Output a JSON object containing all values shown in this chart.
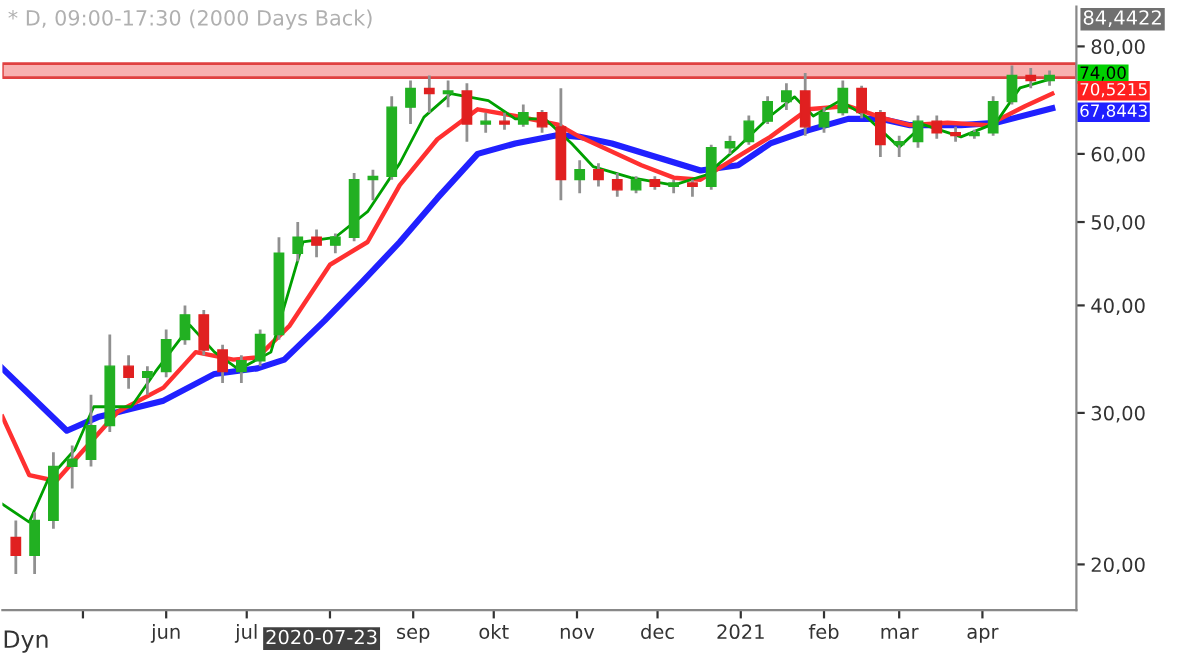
{
  "chart_data": {
    "type": "candlestick",
    "title": "* D, 09:00-17:30 (2000 Days Back)",
    "x": [
      "2020-04-06",
      "2020-04-13",
      "2020-04-20",
      "2020-04-27",
      "2020-05-04",
      "2020-05-11",
      "2020-05-18",
      "2020-05-25",
      "2020-06-01",
      "2020-06-08",
      "2020-06-15",
      "2020-06-22",
      "2020-06-29",
      "2020-07-06",
      "2020-07-13",
      "2020-07-20",
      "2020-07-27",
      "2020-08-03",
      "2020-08-10",
      "2020-08-17",
      "2020-08-24",
      "2020-08-31",
      "2020-09-07",
      "2020-09-14",
      "2020-09-21",
      "2020-09-28",
      "2020-10-05",
      "2020-10-12",
      "2020-10-19",
      "2020-10-26",
      "2020-11-02",
      "2020-11-09",
      "2020-11-16",
      "2020-11-23",
      "2020-11-30",
      "2020-12-07",
      "2020-12-14",
      "2020-12-21",
      "2020-12-28",
      "2021-01-04",
      "2021-01-11",
      "2021-01-18",
      "2021-01-25",
      "2021-02-01",
      "2021-02-08",
      "2021-02-15",
      "2021-02-22",
      "2021-03-01",
      "2021-03-08",
      "2021-03-15",
      "2021-03-22",
      "2021-03-29",
      "2021-04-05",
      "2021-04-12",
      "2021-04-19",
      "2021-04-26"
    ],
    "ohlc": [
      [
        21.5,
        22.5,
        19.5,
        20.5
      ],
      [
        20.5,
        23,
        19.5,
        22.5
      ],
      [
        22.5,
        27,
        22,
        26
      ],
      [
        26,
        27.5,
        24.5,
        26.5
      ],
      [
        26.5,
        31.5,
        26,
        29
      ],
      [
        29,
        37,
        28.5,
        34
      ],
      [
        34,
        35,
        32,
        33
      ],
      [
        33,
        34,
        31.5,
        33.5
      ],
      [
        33.5,
        37.5,
        33,
        36.5
      ],
      [
        36.5,
        40,
        36,
        39
      ],
      [
        39,
        39.5,
        35,
        35.5
      ],
      [
        35.5,
        36,
        32.5,
        33.5
      ],
      [
        33.5,
        35,
        32.5,
        34.5
      ],
      [
        34.5,
        37.5,
        34,
        37
      ],
      [
        37,
        48,
        36.5,
        46
      ],
      [
        46,
        50,
        45,
        48
      ],
      [
        48,
        49,
        45.5,
        47
      ],
      [
        47,
        48.5,
        46,
        48
      ],
      [
        48,
        57,
        47.5,
        56
      ],
      [
        56,
        57.5,
        53,
        56.5
      ],
      [
        56.5,
        70,
        56,
        68
      ],
      [
        68,
        73,
        65,
        71.5
      ],
      [
        71.5,
        74,
        67,
        70.5
      ],
      [
        70.5,
        73,
        68,
        71
      ],
      [
        71,
        72.5,
        62,
        65
      ],
      [
        65,
        67,
        63.5,
        65.5
      ],
      [
        65.5,
        67,
        64,
        65
      ],
      [
        65,
        68.5,
        64.5,
        67
      ],
      [
        67,
        67.5,
        63.5,
        64.5
      ],
      [
        64.5,
        71.5,
        53,
        56
      ],
      [
        56,
        59,
        54,
        57.5
      ],
      [
        57.5,
        58.5,
        55,
        56
      ],
      [
        56,
        57,
        53.5,
        54.5
      ],
      [
        54.5,
        56.5,
        54,
        56
      ],
      [
        56,
        56.5,
        54.5,
        55
      ],
      [
        55,
        56,
        54,
        55.5
      ],
      [
        55.5,
        56,
        53.5,
        55
      ],
      [
        55,
        61.5,
        54.5,
        61
      ],
      [
        61,
        63,
        60,
        62
      ],
      [
        62,
        66.5,
        61.5,
        65.5
      ],
      [
        65.5,
        70,
        65,
        69
      ],
      [
        69,
        72.5,
        67.5,
        71
      ],
      [
        71,
        74.5,
        63,
        64.5
      ],
      [
        64.5,
        68,
        63.5,
        67
      ],
      [
        67,
        73,
        66.5,
        71.5
      ],
      [
        71.5,
        72,
        66,
        67
      ],
      [
        67,
        67.5,
        59.5,
        61.5
      ],
      [
        61.5,
        63,
        59.5,
        62
      ],
      [
        62,
        66.5,
        61,
        65.5
      ],
      [
        65.5,
        66.5,
        62.5,
        63.5
      ],
      [
        63.5,
        64.5,
        62,
        63
      ],
      [
        63,
        64,
        62.5,
        63.5
      ],
      [
        63.5,
        70,
        63,
        69
      ],
      [
        69,
        76,
        68.5,
        74
      ],
      [
        74,
        75.5,
        71.5,
        73
      ],
      [
        73,
        75,
        72,
        74
      ]
    ],
    "colors": [
      "#e02020",
      "#22b022",
      "#22b022",
      "#22b022",
      "#22b022",
      "#22b022",
      "#e02020",
      "#22b022",
      "#22b022",
      "#22b022",
      "#e02020",
      "#e02020",
      "#22b022",
      "#22b022",
      "#22b022",
      "#22b022",
      "#e02020",
      "#22b022",
      "#22b022",
      "#22b022",
      "#22b022",
      "#22b022",
      "#e02020",
      "#22b022",
      "#e02020",
      "#22b022",
      "#e02020",
      "#22b022",
      "#e02020",
      "#e02020",
      "#22b022",
      "#e02020",
      "#e02020",
      "#22b022",
      "#e02020",
      "#22b022",
      "#e02020",
      "#22b022",
      "#22b022",
      "#22b022",
      "#22b022",
      "#22b022",
      "#e02020",
      "#22b022",
      "#22b022",
      "#e02020",
      "#e02020",
      "#22b022",
      "#22b022",
      "#e02020",
      "#e02020",
      "#22b022",
      "#22b022",
      "#22b022",
      "#e02020",
      "#22b022"
    ],
    "series": [
      {
        "type": "line",
        "color": "#00a000",
        "x": [
          "2020-04-01",
          "2020-04-11",
          "2020-04-18",
          "2020-04-28",
          "2020-05-05",
          "2020-05-19",
          "2020-05-28",
          "2020-06-10",
          "2020-06-19",
          "2020-06-28",
          "2020-07-10",
          "2020-07-22",
          "2020-08-03",
          "2020-08-15",
          "2020-08-27",
          "2020-09-05",
          "2020-09-15",
          "2020-09-29",
          "2020-10-09",
          "2020-10-20",
          "2020-10-30",
          "2020-11-07",
          "2020-11-21",
          "2020-12-07",
          "2020-12-19",
          "2020-12-31",
          "2021-01-12",
          "2021-01-21",
          "2021-01-28",
          "2021-02-07",
          "2021-02-17",
          "2021-03-01",
          "2021-03-10",
          "2021-03-24",
          "2021-04-06",
          "2021-04-15",
          "2021-04-27"
        ],
        "values": [
          23.5,
          22.4,
          25.1,
          27.2,
          30.5,
          30.5,
          33.5,
          37.9,
          35.3,
          33.7,
          35.3,
          47.4,
          48,
          51.4,
          58.5,
          66.2,
          70.5,
          69.2,
          65.9,
          65.9,
          61.7,
          58,
          56.3,
          55.2,
          56.7,
          61.1,
          66.4,
          69.9,
          66.4,
          69.2,
          66.2,
          61.1,
          64.9,
          62.8,
          65.2,
          71.6,
          73.4
        ]
      },
      {
        "type": "line",
        "color": "#ff3030",
        "x": [
          "2020-04-01",
          "2020-04-11",
          "2020-04-21",
          "2020-04-30",
          "2020-05-14",
          "2020-05-31",
          "2020-06-12",
          "2020-06-26",
          "2020-07-05",
          "2020-07-17",
          "2020-08-01",
          "2020-08-15",
          "2020-08-27",
          "2020-09-10",
          "2020-09-25",
          "2020-10-09",
          "2020-10-25",
          "2020-11-02",
          "2020-11-25",
          "2020-12-07",
          "2020-12-17",
          "2020-12-31",
          "2021-01-12",
          "2021-01-26",
          "2021-02-10",
          "2021-02-24",
          "2021-03-05",
          "2021-03-19",
          "2021-04-03",
          "2021-04-17",
          "2021-04-27"
        ],
        "values": [
          29.7,
          25.4,
          25,
          26.9,
          30.1,
          32.1,
          35.3,
          34.6,
          34.8,
          37.9,
          44.6,
          47.4,
          55.2,
          62.4,
          67.6,
          66.4,
          64.9,
          62.8,
          58.2,
          56.3,
          56,
          59.6,
          62.8,
          67.6,
          68.2,
          65.9,
          64.8,
          65.2,
          64.8,
          68.2,
          70.5
        ]
      },
      {
        "type": "line",
        "color": "#2020ff",
        "x": [
          "2020-04-01",
          "2020-04-25",
          "2020-05-07",
          "2020-05-31",
          "2020-06-19",
          "2020-07-05",
          "2020-07-15",
          "2020-07-30",
          "2020-08-13",
          "2020-08-27",
          "2020-09-10",
          "2020-09-25",
          "2020-10-09",
          "2020-10-25",
          "2020-11-02",
          "2020-11-14",
          "2020-12-17",
          "2020-12-31",
          "2021-01-12",
          "2021-01-26",
          "2021-02-10",
          "2021-02-22",
          "2021-03-05",
          "2021-03-24",
          "2021-04-06",
          "2021-04-27"
        ],
        "values": [
          33.8,
          28.6,
          29.7,
          31,
          33.3,
          33.8,
          34.6,
          38.4,
          42.6,
          47.4,
          53.3,
          60,
          61.7,
          63.1,
          62.8,
          61.7,
          57.4,
          58.2,
          61.7,
          63.9,
          65.9,
          65.9,
          64.8,
          64.8,
          65.2,
          67.8
        ]
      }
    ],
    "bands": [
      {
        "axis": "y",
        "from": 73.6,
        "to": 76.4,
        "color": "#f8b0b0"
      }
    ],
    "annotations": [
      "84,4422",
      {
        "text": "74,00",
        "x": "2021-04-26",
        "y": 74
      },
      {
        "text": "70,5215",
        "x": "2021-04-26",
        "y": 70.5215
      },
      {
        "text": "67,8443",
        "x": "2021-04-26",
        "y": 67.8443
      },
      "Dyn",
      "2020-07-23"
    ],
    "log": "y",
    "grid": false,
    "legend": false,
    "xlim": [
      "2020-04-01",
      "2021-05-06"
    ],
    "xticks": [
      {
        "value": "2020-05-01",
        "label": null
      },
      {
        "value": "2020-06-01",
        "label": "jun"
      },
      {
        "value": "2020-07-01",
        "label": "jul"
      },
      {
        "value": "2020-08-01",
        "label": null
      },
      {
        "value": "2020-09-01",
        "label": "sep"
      },
      {
        "value": "2020-10-01",
        "label": "okt"
      },
      {
        "value": "2020-11-01",
        "label": "nov"
      },
      {
        "value": "2020-12-01",
        "label": "dec"
      },
      {
        "value": "2021-01-01",
        "label": "2021"
      },
      {
        "value": "2021-02-01",
        "label": "feb"
      },
      {
        "value": "2021-03-01",
        "label": "mar"
      },
      {
        "value": "2021-04-01",
        "label": "apr"
      }
    ],
    "ylim": [
      17.7,
      89
    ],
    "yticks": [
      {
        "value": 20,
        "label": "20,00"
      },
      {
        "value": 30,
        "label": "30,00"
      },
      {
        "value": 40,
        "label": "40,00"
      },
      {
        "value": 50,
        "label": "50,00"
      },
      {
        "value": 60,
        "label": "60,00"
      },
      {
        "value": 80,
        "label": "80,00"
      }
    ]
  }
}
